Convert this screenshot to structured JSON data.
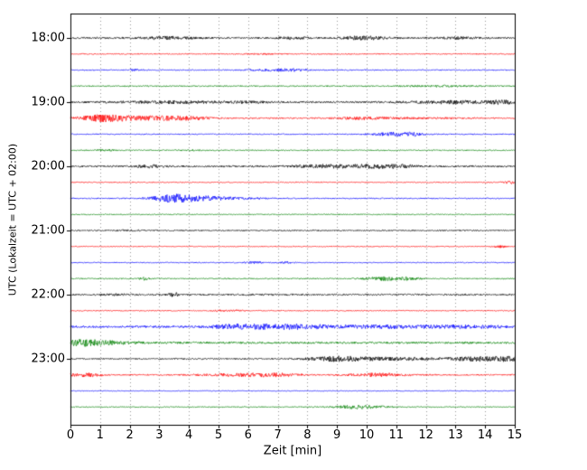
{
  "chart_data": {
    "type": "line",
    "subtype": "seismogram-helicorder",
    "title": "",
    "xlabel": "Zeit  [min]",
    "ylabel": "UTC (Lokalzeit = UTC + 02:00)",
    "xlim": [
      0,
      15
    ],
    "minutes_per_row": 15,
    "x_ticks": [
      0,
      1,
      2,
      3,
      4,
      5,
      6,
      7,
      8,
      9,
      10,
      11,
      12,
      13,
      14,
      15
    ],
    "y_tick_labels": [
      "18:00",
      "19:00",
      "20:00",
      "21:00",
      "22:00",
      "23:00"
    ],
    "grid": "vertical-dotted",
    "grid_color": "#999999",
    "axis_color": "#000000",
    "background_color": "#ffffff",
    "trace_color_cycle": [
      "#000000",
      "#ff0000",
      "#0000ff",
      "#008000"
    ],
    "rows": [
      {
        "hour_label": "18:00",
        "color": "#000000",
        "base": 0.9,
        "bursts": [
          [
            3.3,
            0.6,
            1.2
          ],
          [
            7.6,
            0.4,
            0.9
          ],
          [
            9.9,
            0.5,
            1.8
          ],
          [
            13.2,
            0.4,
            1.0
          ]
        ]
      },
      {
        "hour_label": "",
        "color": "#ff0000",
        "base": 0.55,
        "bursts": [
          [
            6.5,
            0.3,
            0.5
          ]
        ]
      },
      {
        "hour_label": "",
        "color": "#0000ff",
        "base": 0.55,
        "bursts": [
          [
            2.2,
            0.2,
            0.8
          ],
          [
            6.8,
            0.6,
            1.0
          ],
          [
            7.6,
            0.3,
            0.9
          ]
        ]
      },
      {
        "hour_label": "",
        "color": "#008000",
        "base": 0.65,
        "bursts": [
          [
            12.5,
            0.8,
            0.6
          ]
        ]
      },
      {
        "hour_label": "19:00",
        "color": "#000000",
        "base": 1.0,
        "bursts": [
          [
            3.5,
            1.2,
            1.0
          ],
          [
            6.0,
            0.5,
            0.6
          ],
          [
            12.8,
            0.9,
            1.4
          ],
          [
            14.6,
            0.4,
            1.6
          ]
        ]
      },
      {
        "hour_label": "",
        "color": "#ff0000",
        "base": 0.7,
        "bursts": [
          [
            1.0,
            0.5,
            2.8
          ],
          [
            2.2,
            0.8,
            2.2
          ],
          [
            3.8,
            0.6,
            2.0
          ],
          [
            9.9,
            0.7,
            1.1
          ],
          [
            12.0,
            1.0,
            0.5
          ]
        ]
      },
      {
        "hour_label": "",
        "color": "#0000ff",
        "base": 0.55,
        "bursts": [
          [
            10.9,
            0.5,
            1.9
          ],
          [
            11.6,
            0.3,
            1.2
          ]
        ]
      },
      {
        "hour_label": "",
        "color": "#008000",
        "base": 0.55,
        "bursts": [
          [
            1.2,
            0.3,
            0.6
          ],
          [
            4.0,
            0.3,
            0.5
          ]
        ]
      },
      {
        "hour_label": "20:00",
        "color": "#000000",
        "base": 0.9,
        "bursts": [
          [
            2.7,
            0.4,
            1.2
          ],
          [
            8.6,
            0.8,
            1.6
          ],
          [
            10.4,
            0.6,
            1.7
          ],
          [
            11.2,
            0.3,
            1.0
          ]
        ]
      },
      {
        "hour_label": "",
        "color": "#ff0000",
        "base": 0.5,
        "bursts": [
          [
            14.9,
            0.2,
            1.4
          ]
        ]
      },
      {
        "hour_label": "",
        "color": "#0000ff",
        "base": 0.6,
        "bursts": [
          [
            3.4,
            0.45,
            3.8
          ],
          [
            4.3,
            0.5,
            2.0
          ],
          [
            5.3,
            0.8,
            1.0
          ]
        ]
      },
      {
        "hour_label": "",
        "color": "#008000",
        "base": 0.5,
        "bursts": []
      },
      {
        "hour_label": "21:00",
        "color": "#000000",
        "base": 0.65,
        "bursts": [
          [
            2.0,
            0.3,
            0.5
          ]
        ]
      },
      {
        "hour_label": "",
        "color": "#ff0000",
        "base": 0.45,
        "bursts": [
          [
            14.5,
            0.15,
            1.2
          ]
        ]
      },
      {
        "hour_label": "",
        "color": "#0000ff",
        "base": 0.5,
        "bursts": [
          [
            6.2,
            0.2,
            0.9
          ],
          [
            7.3,
            0.2,
            0.8
          ]
        ]
      },
      {
        "hour_label": "",
        "color": "#008000",
        "base": 0.55,
        "bursts": [
          [
            2.5,
            0.12,
            1.4
          ],
          [
            10.6,
            0.5,
            1.9
          ],
          [
            11.4,
            0.3,
            1.0
          ]
        ]
      },
      {
        "hour_label": "22:00",
        "color": "#000000",
        "base": 0.85,
        "bursts": [
          [
            1.5,
            0.3,
            0.6
          ],
          [
            3.5,
            0.15,
            1.8
          ]
        ]
      },
      {
        "hour_label": "",
        "color": "#ff0000",
        "base": 0.5,
        "bursts": [
          [
            5.0,
            0.2,
            0.7
          ],
          [
            5.6,
            0.2,
            0.6
          ]
        ]
      },
      {
        "hour_label": "",
        "color": "#0000ff",
        "base": 1.1,
        "bursts": [
          [
            5.3,
            0.5,
            1.5
          ],
          [
            6.5,
            0.8,
            1.8
          ],
          [
            7.8,
            0.6,
            1.6
          ],
          [
            10.5,
            1.5,
            1.2
          ],
          [
            13.5,
            1.0,
            1.0
          ]
        ]
      },
      {
        "hour_label": "",
        "color": "#008000",
        "base": 1.1,
        "bursts": [
          [
            0.4,
            0.4,
            2.6
          ],
          [
            1.3,
            0.6,
            1.6
          ]
        ]
      },
      {
        "hour_label": "23:00",
        "color": "#000000",
        "base": 0.7,
        "bursts": [
          [
            9.0,
            0.7,
            2.2
          ],
          [
            10.8,
            1.2,
            1.5
          ],
          [
            13.9,
            0.8,
            2.2
          ],
          [
            14.8,
            0.3,
            1.5
          ]
        ]
      },
      {
        "hour_label": "",
        "color": "#ff0000",
        "base": 0.7,
        "bursts": [
          [
            0.5,
            0.4,
            1.8
          ],
          [
            5.8,
            0.9,
            1.4
          ],
          [
            7.0,
            0.5,
            1.2
          ],
          [
            10.3,
            0.7,
            1.6
          ]
        ]
      },
      {
        "hour_label": "",
        "color": "#0000ff",
        "base": 0.4,
        "bursts": []
      },
      {
        "hour_label": "",
        "color": "#008000",
        "base": 0.5,
        "bursts": [
          [
            9.8,
            0.6,
            1.9
          ]
        ]
      }
    ]
  }
}
